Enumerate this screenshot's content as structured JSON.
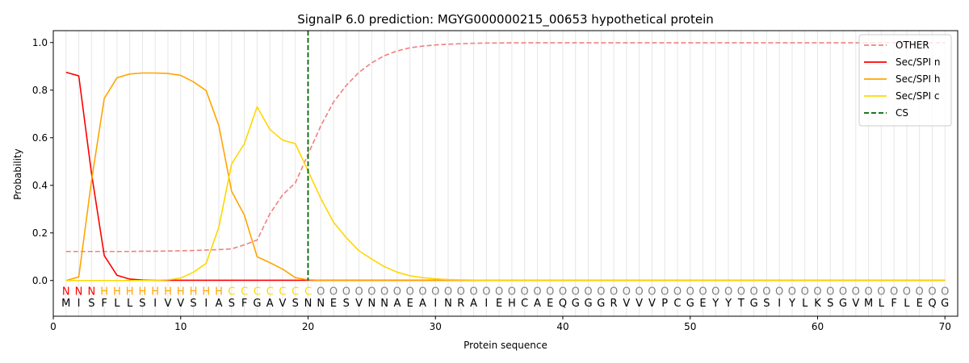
{
  "chart_data": {
    "type": "line",
    "title": "SignalP 6.0 prediction: MGYG000000215_00653 hypothetical protein",
    "xlabel": "Protein sequence",
    "ylabel": "Probability",
    "xlim": [
      0,
      71
    ],
    "ylim": [
      -0.15,
      1.05
    ],
    "xticks": [
      0,
      10,
      20,
      30,
      40,
      50,
      60,
      70
    ],
    "yticks": [
      0.0,
      0.2,
      0.4,
      0.6,
      0.8,
      1.0
    ],
    "xtick_labels": [
      "0",
      "10",
      "20",
      "30",
      "40",
      "50",
      "60",
      "70"
    ],
    "ytick_labels": [
      "0.0",
      "0.2",
      "0.4",
      "0.6",
      "0.8",
      "1.0"
    ],
    "sequence": [
      "M",
      "I",
      "S",
      "F",
      "L",
      "L",
      "S",
      "I",
      "V",
      "V",
      "S",
      "I",
      "A",
      "S",
      "F",
      "G",
      "A",
      "V",
      "S",
      "N",
      "N",
      "E",
      "S",
      "V",
      "N",
      "N",
      "A",
      "E",
      "A",
      "I",
      "N",
      "R",
      "A",
      "I",
      "E",
      "H",
      "C",
      "A",
      "E",
      "Q",
      "G",
      "G",
      "G",
      "R",
      "V",
      "V",
      "V",
      "P",
      "C",
      "G",
      "E",
      "Y",
      "Y",
      "T",
      "G",
      "S",
      "I",
      "Y",
      "L",
      "K",
      "S",
      "G",
      "V",
      "M",
      "L",
      "F",
      "L",
      "E",
      "Q",
      "G"
    ],
    "states": [
      "N",
      "N",
      "N",
      "H",
      "H",
      "H",
      "H",
      "H",
      "H",
      "H",
      "H",
      "H",
      "H",
      "C",
      "C",
      "C",
      "C",
      "C",
      "C",
      "C",
      "O",
      "O",
      "O",
      "O",
      "O",
      "O",
      "O",
      "O",
      "O",
      "O",
      "O",
      "O",
      "O",
      "O",
      "O",
      "O",
      "O",
      "O",
      "O",
      "O",
      "O",
      "O",
      "O",
      "O",
      "O",
      "O",
      "O",
      "O",
      "O",
      "O",
      "O",
      "O",
      "O",
      "O",
      "O",
      "O",
      "O",
      "O",
      "O",
      "O",
      "O",
      "O",
      "O",
      "O",
      "O",
      "O",
      "O",
      "O",
      "O",
      "O"
    ],
    "state_colors": {
      "N": "#ff0000",
      "H": "#ffa500",
      "C": "#ffd700",
      "O": "#808080"
    },
    "cleavage_site": 20,
    "legend": {
      "placement": "top-right",
      "entries": [
        "OTHER",
        "Sec/SPI n",
        "Sec/SPI h",
        "Sec/SPI c",
        "CS"
      ]
    },
    "series": [
      {
        "name": "OTHER",
        "color": "#f08080",
        "dash": "dashed",
        "values": [
          0.122,
          0.122,
          0.122,
          0.122,
          0.122,
          0.122,
          0.123,
          0.123,
          0.124,
          0.125,
          0.126,
          0.128,
          0.13,
          0.133,
          0.15,
          0.17,
          0.28,
          0.36,
          0.41,
          0.53,
          0.65,
          0.75,
          0.82,
          0.875,
          0.915,
          0.945,
          0.965,
          0.978,
          0.985,
          0.99,
          0.993,
          0.995,
          0.997,
          0.998,
          0.998,
          0.999,
          0.999,
          0.999,
          0.999,
          0.999,
          0.999,
          0.999,
          0.999,
          0.999,
          0.999,
          0.999,
          0.999,
          0.999,
          0.999,
          0.999,
          0.999,
          0.999,
          0.999,
          0.999,
          0.999,
          0.999,
          0.999,
          0.999,
          0.999,
          0.999,
          0.999,
          0.999,
          0.999,
          0.999,
          0.999,
          0.999,
          0.999,
          0.999,
          0.999,
          0.999
        ]
      },
      {
        "name": "Sec/SPI n",
        "color": "#ff0000",
        "dash": "solid",
        "values": [
          0.875,
          0.86,
          0.45,
          0.105,
          0.022,
          0.006,
          0.002,
          0.001,
          0.001,
          0.001,
          0.001,
          0.001,
          0.001,
          0.001,
          0.001,
          0.001,
          0.001,
          0.001,
          0.001,
          0.001,
          0.001,
          0.001,
          0.001,
          0.001,
          0.001,
          0.001,
          0.001,
          0.001,
          0.001,
          0.001,
          0.001,
          0.001,
          0.001,
          0.001,
          0.001,
          0.001,
          0.001,
          0.001,
          0.001,
          0.001,
          0.001,
          0.001,
          0.001,
          0.001,
          0.001,
          0.001,
          0.001,
          0.001,
          0.001,
          0.001,
          0.001,
          0.001,
          0.001,
          0.001,
          0.001,
          0.001,
          0.001,
          0.001,
          0.001,
          0.001,
          0.001,
          0.001,
          0.001,
          0.001,
          0.001,
          0.001,
          0.001,
          0.001,
          0.001,
          0.001
        ]
      },
      {
        "name": "Sec/SPI h",
        "color": "#ffa500",
        "dash": "solid",
        "values": [
          0.0,
          0.015,
          0.42,
          0.765,
          0.852,
          0.868,
          0.872,
          0.872,
          0.87,
          0.862,
          0.835,
          0.798,
          0.65,
          0.375,
          0.275,
          0.1,
          0.075,
          0.048,
          0.012,
          0.003,
          0.001,
          0.001,
          0.001,
          0.001,
          0.001,
          0.001,
          0.001,
          0.001,
          0.001,
          0.001,
          0.001,
          0.001,
          0.001,
          0.001,
          0.001,
          0.001,
          0.001,
          0.001,
          0.001,
          0.001,
          0.001,
          0.001,
          0.001,
          0.001,
          0.001,
          0.001,
          0.001,
          0.001,
          0.001,
          0.001,
          0.001,
          0.001,
          0.001,
          0.001,
          0.001,
          0.001,
          0.001,
          0.001,
          0.001,
          0.001,
          0.001,
          0.001,
          0.001,
          0.001,
          0.001,
          0.001,
          0.001,
          0.001,
          0.001,
          0.001
        ]
      },
      {
        "name": "Sec/SPI c",
        "color": "#ffd700",
        "dash": "solid",
        "values": [
          0.0,
          0.0,
          0.0,
          0.0,
          0.0,
          0.0,
          0.0,
          0.001,
          0.003,
          0.01,
          0.035,
          0.072,
          0.225,
          0.49,
          0.575,
          0.73,
          0.635,
          0.59,
          0.575,
          0.46,
          0.345,
          0.245,
          0.18,
          0.125,
          0.09,
          0.058,
          0.035,
          0.02,
          0.012,
          0.007,
          0.004,
          0.003,
          0.002,
          0.001,
          0.001,
          0.001,
          0.001,
          0.001,
          0.001,
          0.001,
          0.001,
          0.001,
          0.001,
          0.001,
          0.001,
          0.001,
          0.001,
          0.001,
          0.001,
          0.001,
          0.001,
          0.001,
          0.001,
          0.001,
          0.001,
          0.001,
          0.001,
          0.001,
          0.001,
          0.001,
          0.001,
          0.001,
          0.001,
          0.001,
          0.001,
          0.001,
          0.001,
          0.001,
          0.001,
          0.001
        ]
      }
    ],
    "cs_color": "#006400"
  }
}
